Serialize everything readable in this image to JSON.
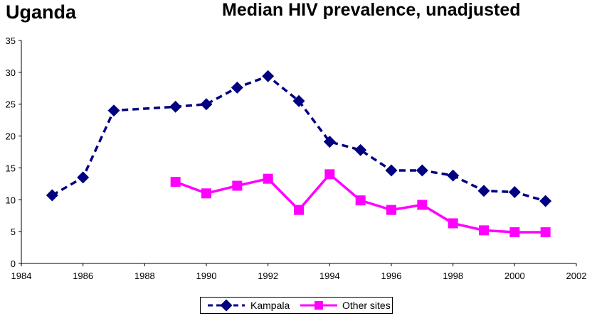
{
  "header": {
    "country": "Uganda",
    "title": "Median HIV prevalence, unadjusted"
  },
  "chart_data": {
    "type": "line",
    "title": "Median HIV prevalence, unadjusted",
    "subtitle": "Uganda",
    "xlabel": "",
    "ylabel": "",
    "xlim": [
      1984,
      2002
    ],
    "ylim": [
      0,
      35
    ],
    "xticks": [
      1984,
      1986,
      1988,
      1990,
      1992,
      1994,
      1996,
      1998,
      2000,
      2002
    ],
    "yticks": [
      0,
      5,
      10,
      15,
      20,
      25,
      30,
      35
    ],
    "grid": false,
    "legend_position": "bottom",
    "series": [
      {
        "name": "Kampala",
        "color": "#000080",
        "style": "dashed",
        "marker": "diamond",
        "x": [
          1985,
          1986,
          1987,
          1989,
          1990,
          1991,
          1992,
          1993,
          1994,
          1995,
          1996,
          1997,
          1998,
          1999,
          2000,
          2001
        ],
        "y": [
          10.7,
          13.5,
          24.0,
          24.6,
          25.0,
          27.6,
          29.4,
          25.5,
          19.1,
          17.8,
          14.6,
          14.6,
          13.8,
          11.4,
          11.2,
          9.8
        ]
      },
      {
        "name": "Other sites",
        "color": "#ff00ff",
        "style": "solid",
        "marker": "square",
        "x": [
          1989,
          1990,
          1991,
          1992,
          1993,
          1994,
          1995,
          1996,
          1997,
          1998,
          1999,
          2000,
          2001
        ],
        "y": [
          12.8,
          11.0,
          12.2,
          13.3,
          8.4,
          14.0,
          9.9,
          8.4,
          9.2,
          6.3,
          5.2,
          4.9,
          4.9
        ]
      }
    ]
  }
}
